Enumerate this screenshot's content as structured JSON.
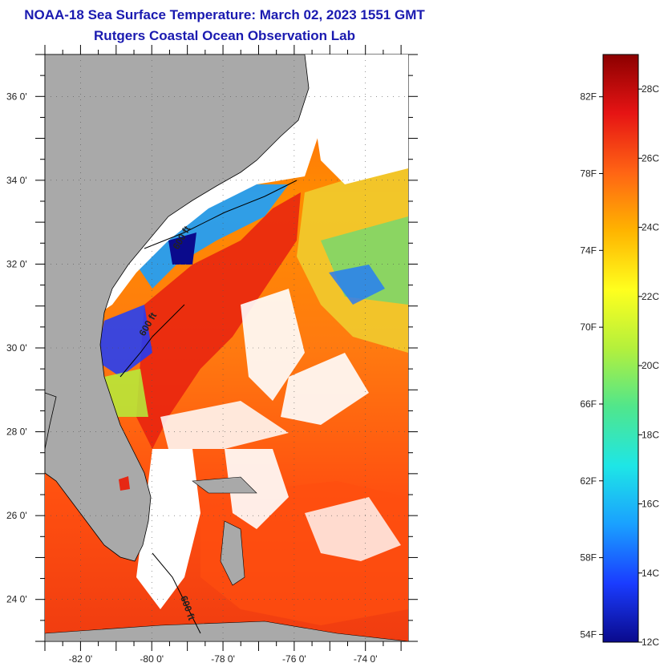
{
  "title": "NOAA-18 Sea Surface Temperature:  March 02, 2023 1551 GMT",
  "subtitle": "Rutgers Coastal Ocean Observation Lab",
  "map": {
    "lat_ticks": [
      {
        "value": 36,
        "label": "36 0'"
      },
      {
        "value": 34,
        "label": "34 0'"
      },
      {
        "value": 32,
        "label": "32 0'"
      },
      {
        "value": 30,
        "label": "30 0'"
      },
      {
        "value": 28,
        "label": "28 0'"
      },
      {
        "value": 26,
        "label": "26 0'"
      },
      {
        "value": 24,
        "label": "24 0'"
      }
    ],
    "lon_ticks": [
      {
        "value": -82,
        "label": "-82 0'"
      },
      {
        "value": -80,
        "label": "-80 0'"
      },
      {
        "value": -78,
        "label": "-78 0'"
      },
      {
        "value": -76,
        "label": "-76 0'"
      },
      {
        "value": -74,
        "label": "-74 0'"
      }
    ],
    "lat_range": [
      23.0,
      37.0
    ],
    "lon_range": [
      -83.0,
      -72.8
    ],
    "contour_labels": [
      "600 ft",
      "600 ft",
      "600 ft"
    ],
    "land_color": "#a9a9a9",
    "cloud_color": "#ffffff"
  },
  "colorbar": {
    "min_c": 12,
    "max_c": 29,
    "celsius": [
      {
        "value": 28,
        "label": "28C"
      },
      {
        "value": 26,
        "label": "26C"
      },
      {
        "value": 24,
        "label": "24C"
      },
      {
        "value": 22,
        "label": "22C"
      },
      {
        "value": 20,
        "label": "20C"
      },
      {
        "value": 18,
        "label": "18C"
      },
      {
        "value": 16,
        "label": "16C"
      },
      {
        "value": 14,
        "label": "14C"
      },
      {
        "value": 12,
        "label": "12C"
      }
    ],
    "fahrenheit": [
      {
        "value": 82,
        "label": "82F"
      },
      {
        "value": 78,
        "label": "78F"
      },
      {
        "value": 74,
        "label": "74F"
      },
      {
        "value": 70,
        "label": "70F"
      },
      {
        "value": 66,
        "label": "66F"
      },
      {
        "value": 62,
        "label": "62F"
      },
      {
        "value": 58,
        "label": "58F"
      },
      {
        "value": 54,
        "label": "54F"
      }
    ],
    "stops": [
      "#0a0a8c",
      "#1a3cff",
      "#1aa0ff",
      "#1ee6e6",
      "#50e68c",
      "#b4f03c",
      "#ffff1e",
      "#ffb400",
      "#ff6414",
      "#e61414",
      "#8c0000"
    ]
  }
}
